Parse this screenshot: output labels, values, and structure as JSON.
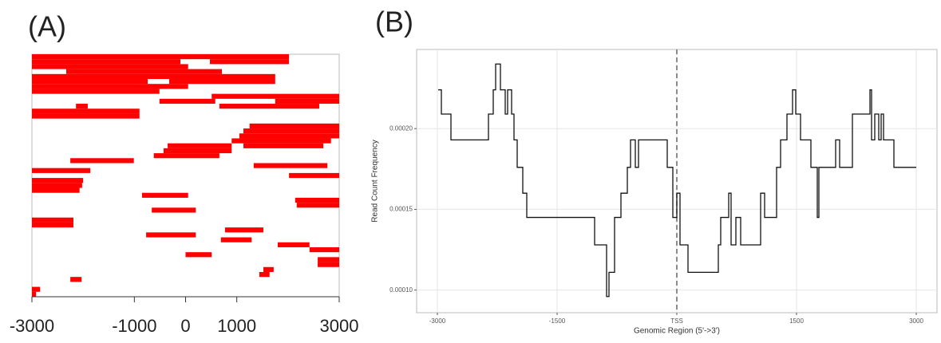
{
  "chart_data": [
    {
      "type": "range",
      "title": "(A)",
      "color": "#ff0000",
      "xlim": [
        -3000,
        3000
      ],
      "xticks": [
        -3000,
        -1000,
        0,
        1000,
        3000
      ],
      "rows": [
        [
          [
            -3000,
            2020
          ]
        ],
        [
          [
            -3000,
            -100
          ],
          [
            475,
            2020
          ]
        ],
        [
          [
            -3000,
            50
          ]
        ],
        [
          [
            -2330,
            710
          ]
        ],
        [
          [
            -3000,
            1750
          ]
        ],
        [
          [
            -3000,
            -740
          ],
          [
            -320,
            1750
          ]
        ],
        [
          [
            -3000,
            50
          ]
        ],
        [
          [
            -3000,
            -510
          ]
        ],
        [
          [
            510,
            3000
          ]
        ],
        [
          [
            -510,
            580
          ],
          [
            1750,
            3000
          ]
        ],
        [
          [
            -2140,
            -1910
          ],
          [
            660,
            2610
          ]
        ],
        [
          [
            -3000,
            -900
          ]
        ],
        [
          [
            -3000,
            -900
          ]
        ],
        [],
        [
          [
            1250,
            3000
          ]
        ],
        [
          [
            1130,
            3000
          ]
        ],
        [
          [
            1050,
            3000
          ]
        ],
        [
          [
            900,
            2840
          ]
        ],
        [
          [
            -350,
            900
          ],
          [
            1130,
            2690
          ]
        ],
        [
          [
            -430,
            900
          ]
        ],
        [
          [
            -620,
            660
          ]
        ],
        [
          [
            -2250,
            -1010
          ]
        ],
        [
          [
            1330,
            2770
          ]
        ],
        [
          [
            -3000,
            -1860
          ]
        ],
        [
          [
            2020,
            3000
          ]
        ],
        [
          [
            -3000,
            -2000
          ]
        ],
        [
          [
            -3000,
            -2020
          ]
        ],
        [
          [
            -3000,
            -2070
          ]
        ],
        [
          [
            -850,
            50
          ]
        ],
        [
          [
            2140,
            3000
          ]
        ],
        [
          [
            2170,
            3000
          ]
        ],
        [
          [
            -660,
            200
          ]
        ],
        [],
        [
          [
            -3000,
            -2190
          ]
        ],
        [
          [
            -3000,
            -2190
          ]
        ],
        [
          [
            770,
            1520
          ]
        ],
        [
          [
            -770,
            200
          ]
        ],
        [
          [
            690,
            1290
          ]
        ],
        [
          [
            1800,
            2420
          ]
        ],
        [
          [
            2420,
            3000
          ]
        ],
        [
          [
            0,
            510
          ]
        ],
        [
          [
            2580,
            3000
          ]
        ],
        [
          [
            2580,
            3000
          ]
        ],
        [
          [
            1520,
            1720
          ]
        ],
        [
          [
            1440,
            1640
          ]
        ],
        [
          [
            -2250,
            -2030
          ]
        ],
        [],
        [
          [
            -3000,
            -2840
          ]
        ],
        [
          [
            -3000,
            -2920
          ]
        ]
      ]
    },
    {
      "type": "line",
      "title": "(B)",
      "drawstyle": "steps-post",
      "color": "#111111",
      "x_label": "Genomic Region (5'->3')",
      "y_label": "Read Count Frequency",
      "xlim": [
        -3260,
        3260
      ],
      "ylim": [
        8.6e-05,
        0.000249
      ],
      "xticks": [
        -3000,
        -1500,
        {
          "value": 0,
          "label": "TSS"
        },
        1500,
        3000
      ],
      "yticks": [
        {
          "value": 0.0001,
          "label": "0.00010"
        },
        0.00015,
        {
          "value": 0.0002,
          "label": "0.00020"
        }
      ],
      "grid": true,
      "vline": 0,
      "x": [
        -2990,
        -2950,
        -2830,
        -2360,
        -2300,
        -2270,
        -2210,
        -2150,
        -2120,
        -2070,
        -2040,
        -2000,
        -1930,
        -1880,
        -1030,
        -880,
        -850,
        -780,
        -700,
        -620,
        -580,
        -520,
        -480,
        -120,
        -50,
        0,
        40,
        140,
        520,
        550,
        650,
        680,
        740,
        800,
        1050,
        1100,
        1250,
        1300,
        1380,
        1450,
        1490,
        1550,
        1680,
        1760,
        1780,
        1990,
        2040,
        2200,
        2420,
        2440,
        2480,
        2530,
        2560,
        2590,
        2720,
        3000
      ],
      "values": [
        0.000224,
        0.000209,
        0.000193,
        0.000209,
        0.000224,
        0.00024,
        0.000224,
        0.000209,
        0.000224,
        0.000209,
        0.000193,
        0.000176,
        0.00016,
        0.000145,
        0.000128,
        9.6e-05,
        0.000111,
        0.000145,
        0.00016,
        0.000176,
        0.000193,
        0.000176,
        0.000193,
        0.000176,
        0.000145,
        0.00016,
        0.000128,
        0.000111,
        0.000128,
        0.000145,
        0.00016,
        0.000128,
        0.000145,
        0.000128,
        0.00016,
        0.000145,
        0.000176,
        0.000193,
        0.000209,
        0.000224,
        0.000209,
        0.000193,
        0.000176,
        0.000145,
        0.000176,
        0.000193,
        0.000176,
        0.000209,
        0.000224,
        0.000193,
        0.000209,
        0.000193,
        0.000209,
        0.000193,
        0.000176,
        0.000176
      ]
    }
  ]
}
